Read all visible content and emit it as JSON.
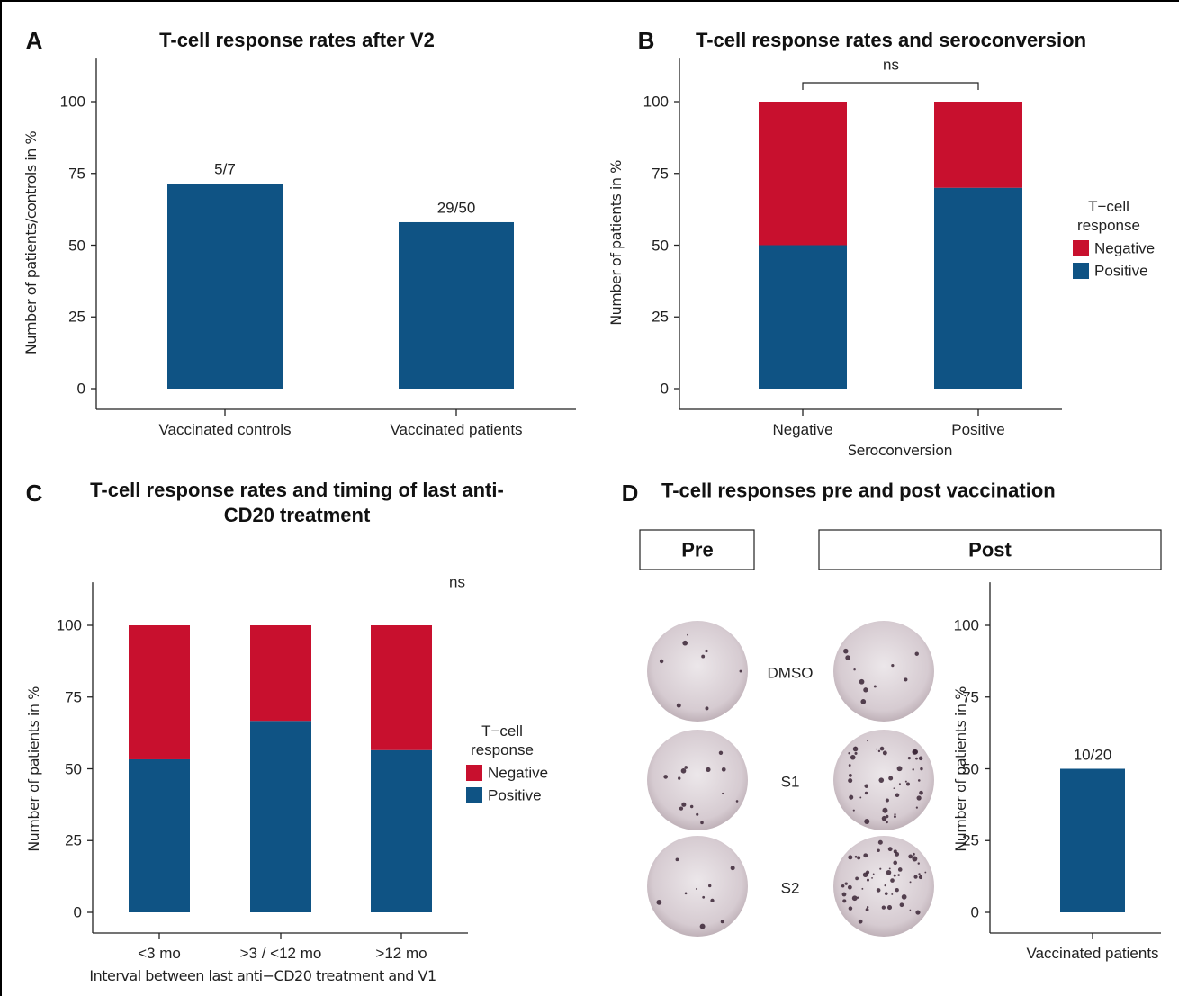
{
  "chart_data": [
    {
      "type": "bar",
      "panel": "A",
      "title": "T-cell response rates after V2",
      "y_label": "Number of patients/controls in %",
      "categories": [
        "Vaccinated controls",
        "Vaccinated patients"
      ],
      "values": [
        71.4,
        58
      ],
      "value_labels": [
        "5/7",
        "29/50"
      ],
      "color": "#0f5384",
      "ylim": [
        0,
        115
      ],
      "yticks": [
        0,
        25,
        50,
        75,
        100
      ]
    },
    {
      "type": "stacked_bar",
      "panel": "B",
      "title": "T-cell response rates and seroconversion",
      "x_label": "Seroconversion",
      "y_label": "Number of patients in %",
      "categories": [
        "Negative",
        "Positive"
      ],
      "series": [
        {
          "name": "Positive",
          "color": "#0f5384",
          "values": [
            50,
            70
          ]
        },
        {
          "name": "Negative",
          "color": "#c8102e",
          "values": [
            50,
            30
          ]
        }
      ],
      "legend_title": "T−cell response",
      "annotation": "ns",
      "ylim": [
        0,
        115
      ],
      "yticks": [
        0,
        25,
        50,
        75,
        100
      ]
    },
    {
      "type": "stacked_bar",
      "panel": "C",
      "title": "T-cell response rates and timing of last anti-CD20 treatment",
      "x_label": "Interval between last anti−CD20 treatment and V1",
      "y_label": "Number of patients in %",
      "categories": [
        "<3 mo",
        ">3 / <12 mo",
        ">12 mo"
      ],
      "series": [
        {
          "name": "Positive",
          "color": "#0f5384",
          "values": [
            53.3,
            66.7,
            56.5
          ]
        },
        {
          "name": "Negative",
          "color": "#c8102e",
          "values": [
            46.7,
            33.3,
            43.5
          ]
        }
      ],
      "legend_title": "T−cell response",
      "annotation": "ns",
      "ylim": [
        0,
        115
      ],
      "yticks": [
        0,
        25,
        50,
        75,
        100
      ]
    },
    {
      "type": "bar",
      "panel": "D",
      "title": "T-cell responses pre and post vaccination",
      "y_label": "Number of patients in %",
      "panel_labels": [
        "Pre",
        "Post"
      ],
      "row_labels": [
        "DMSO",
        "S1",
        "S2"
      ],
      "categories": [
        "Vaccinated patients"
      ],
      "values": [
        50
      ],
      "value_labels": [
        "10/20"
      ],
      "color": "#0f5384",
      "ylim": [
        0,
        115
      ],
      "yticks": [
        0,
        25,
        50,
        75,
        100
      ]
    }
  ]
}
